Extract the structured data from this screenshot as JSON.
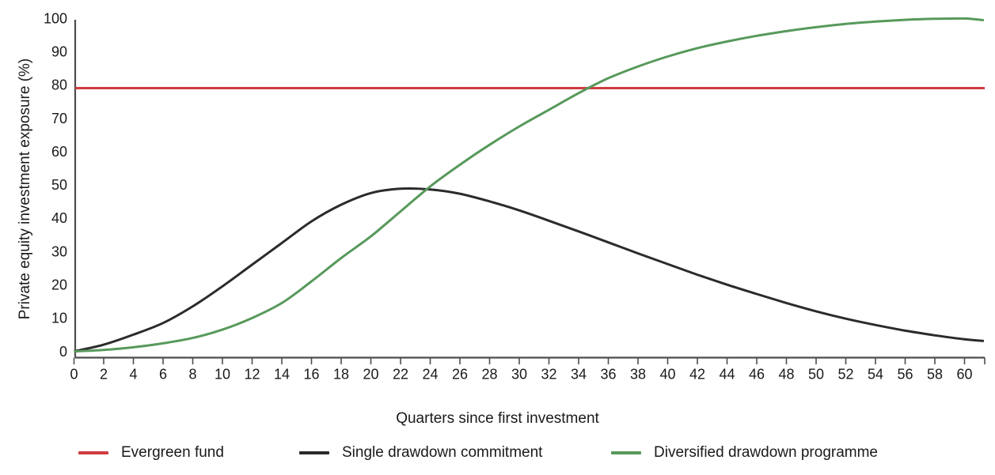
{
  "chart_data": {
    "type": "line",
    "title": "",
    "xlabel": "Quarters since first investment",
    "ylabel": "Private equity investment exposure (%)",
    "xlim": [
      0,
      61.3
    ],
    "ylim": [
      0,
      100
    ],
    "grid": "off",
    "legend_position": "bottom",
    "x_ticks": [
      0,
      2,
      4,
      6,
      8,
      10,
      12,
      14,
      16,
      18,
      20,
      22,
      24,
      26,
      28,
      30,
      32,
      34,
      36,
      38,
      40,
      42,
      44,
      46,
      48,
      50,
      52,
      54,
      56,
      58,
      60
    ],
    "y_ticks": [
      0,
      10,
      20,
      30,
      40,
      50,
      60,
      70,
      80,
      90,
      100
    ],
    "x": [
      0,
      2,
      4,
      6,
      8,
      10,
      12,
      14,
      16,
      18,
      20,
      22,
      24,
      26,
      28,
      30,
      32,
      34,
      36,
      38,
      40,
      42,
      44,
      46,
      48,
      50,
      52,
      54,
      56,
      58,
      60,
      61.3
    ],
    "series": [
      {
        "name": "Evergreen fund",
        "color": "#CE3D3E",
        "style": "hline",
        "value": 79
      },
      {
        "name": "Single drawdown commitment",
        "color": "#2B2B2B",
        "style": "curve",
        "values": [
          0,
          2,
          5,
          8.5,
          13.5,
          19.5,
          26,
          32.5,
          39,
          44,
          47.5,
          48.8,
          48.6,
          47.3,
          45,
          42.3,
          39.2,
          36,
          32.7,
          29.4,
          26.2,
          23,
          20,
          17.2,
          14.5,
          12,
          9.8,
          7.9,
          6.2,
          4.8,
          3.6,
          3.1
        ]
      },
      {
        "name": "Diversified drawdown programme",
        "color": "#57995B",
        "style": "curve",
        "values": [
          0,
          0.4,
          1.2,
          2.4,
          4,
          6.5,
          10,
          14.5,
          21,
          28,
          34.5,
          42,
          49.5,
          56,
          62,
          67.5,
          72.5,
          77.5,
          82,
          85.5,
          88.5,
          91,
          93,
          94.7,
          96.1,
          97.3,
          98.3,
          99,
          99.5,
          99.8,
          99.9,
          99.4
        ]
      }
    ]
  }
}
